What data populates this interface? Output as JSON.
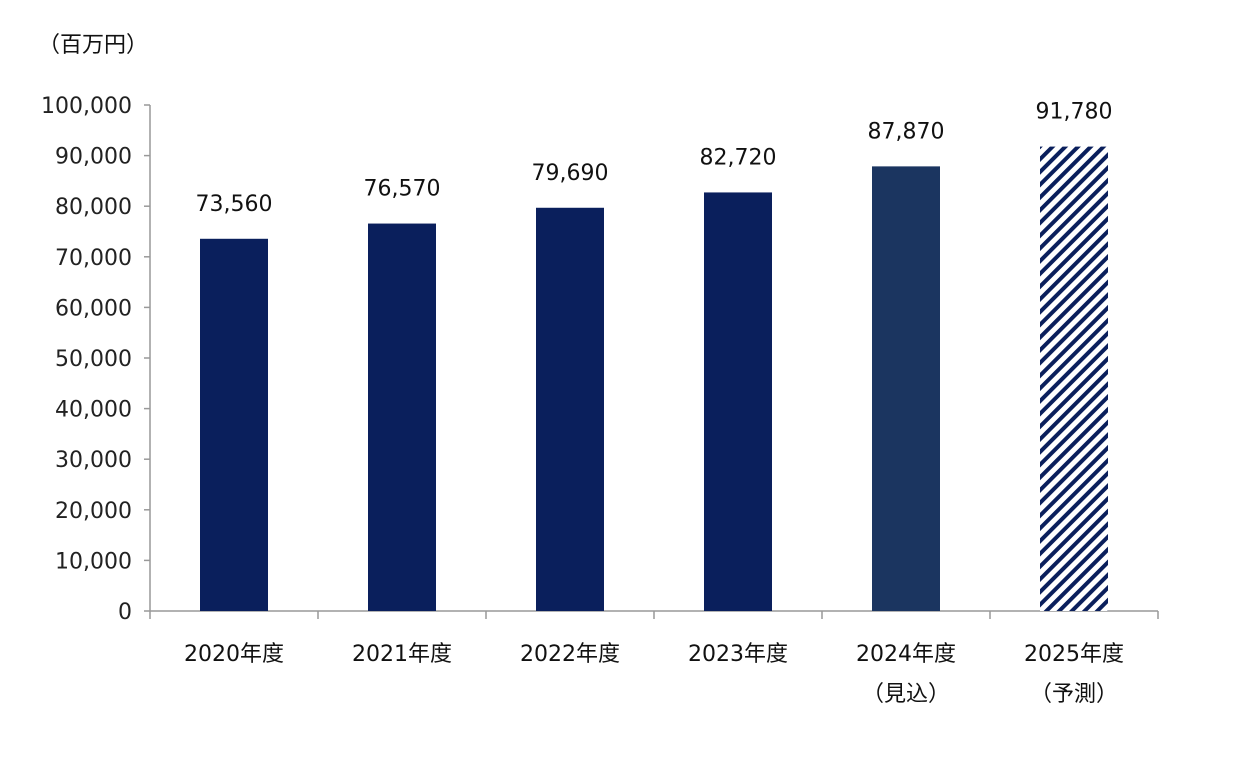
{
  "chart_data": {
    "type": "bar",
    "unit_label": "（百万円）",
    "categories": [
      [
        "2020年度"
      ],
      [
        "2021年度"
      ],
      [
        "2022年度"
      ],
      [
        "2023年度"
      ],
      [
        "2024年度",
        "（見込）"
      ],
      [
        "2025年度",
        "（予測）"
      ]
    ],
    "values": [
      73560,
      76570,
      79690,
      82720,
      87870,
      91780
    ],
    "data_labels": [
      "73,560",
      "76,570",
      "79,690",
      "82,720",
      "87,870",
      "91,780"
    ],
    "bar_styles": [
      "solid",
      "solid",
      "solid",
      "solid",
      "solid-light",
      "hatched"
    ],
    "colors": {
      "actual": "#0a1f5c",
      "estimate": "#1b3560",
      "forecast_stripe": "#0a1f5c",
      "axis": "#999999"
    },
    "ylim": [
      0,
      100000
    ],
    "yticks": [
      0,
      10000,
      20000,
      30000,
      40000,
      50000,
      60000,
      70000,
      80000,
      90000,
      100000
    ],
    "ytick_labels": [
      "0",
      "10,000",
      "20,000",
      "30,000",
      "40,000",
      "50,000",
      "60,000",
      "70,000",
      "80,000",
      "90,000",
      "100,000"
    ],
    "grid": false,
    "legend": "none"
  }
}
